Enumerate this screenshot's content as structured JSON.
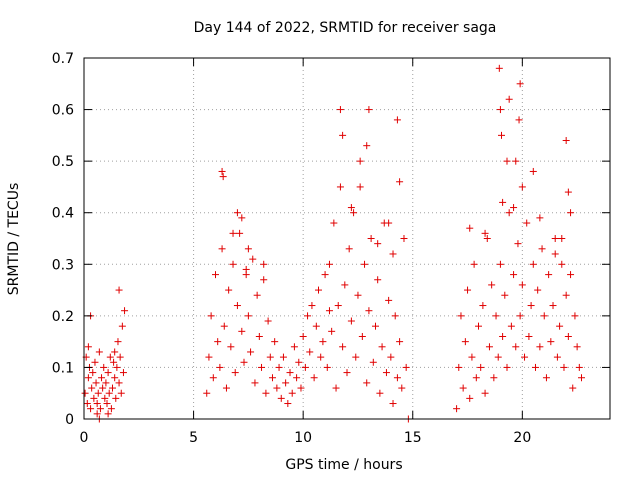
{
  "chart_data": {
    "type": "scatter",
    "title": "Day 144 of 2022, SRMTID for receiver saga",
    "xlabel": "GPS time / hours",
    "ylabel": "SRMTID / TECUs",
    "xlim": [
      0,
      24
    ],
    "ylim": [
      0,
      0.7
    ],
    "xticks": [
      0,
      5,
      10,
      15,
      20
    ],
    "yticks": [
      0,
      0.1,
      0.2,
      0.3,
      0.4,
      0.5,
      0.6,
      0.7
    ],
    "xtick_labels": [
      "0",
      "5",
      "10",
      "15",
      "20"
    ],
    "ytick_labels": [
      "0",
      "0.1",
      "0.2",
      "0.3",
      "0.4",
      "0.5",
      "0.6",
      "0.7"
    ],
    "grid": true,
    "marker": "+",
    "marker_color": "#e00000",
    "series": [
      {
        "name": "SRMTID",
        "x": [
          0.05,
          0.1,
          0.15,
          0.2,
          0.25,
          0.3,
          0.35,
          0.4,
          0.45,
          0.5,
          0.55,
          0.6,
          0.65,
          0.7,
          0.75,
          0.8,
          0.85,
          0.9,
          0.95,
          1.0,
          1.05,
          1.1,
          1.15,
          1.2,
          1.25,
          1.3,
          1.35,
          1.4,
          1.45,
          1.5,
          1.55,
          1.6,
          1.65,
          1.7,
          1.75,
          1.8,
          1.85,
          0.3,
          0.6,
          1.6,
          0.2,
          0.7,
          1.1,
          1.4,
          5.6,
          5.7,
          5.8,
          5.9,
          6.0,
          6.1,
          6.2,
          6.3,
          6.4,
          6.5,
          6.6,
          6.7,
          6.8,
          6.9,
          7.0,
          7.1,
          7.2,
          7.3,
          7.4,
          7.5,
          7.6,
          7.7,
          7.8,
          7.9,
          8.0,
          8.1,
          8.2,
          8.3,
          8.4,
          8.5,
          8.6,
          8.7,
          8.8,
          8.9,
          9.0,
          9.1,
          9.2,
          9.3,
          9.4,
          9.5,
          9.6,
          9.7,
          9.8,
          9.9,
          10.0,
          10.1,
          10.2,
          10.3,
          10.4,
          10.5,
          10.6,
          10.7,
          10.8,
          10.9,
          11.0,
          11.1,
          11.2,
          11.3,
          11.4,
          11.5,
          11.6,
          11.7,
          11.8,
          11.9,
          12.0,
          12.1,
          12.2,
          12.3,
          12.4,
          12.5,
          12.6,
          12.7,
          12.8,
          12.9,
          13.0,
          13.1,
          13.2,
          13.3,
          13.4,
          13.5,
          13.6,
          13.7,
          13.8,
          13.9,
          14.0,
          14.1,
          14.2,
          14.3,
          14.4,
          14.5,
          14.6,
          14.7,
          14.8,
          6.3,
          6.35,
          6.8,
          7.0,
          7.5,
          8.2,
          11.7,
          11.8,
          12.9,
          13.0,
          13.9,
          14.3,
          14.4,
          11.2,
          12.2,
          12.6,
          13.4,
          14.1,
          7.2,
          7.4,
          17.0,
          17.1,
          17.2,
          17.3,
          17.4,
          17.5,
          17.6,
          17.7,
          17.8,
          17.9,
          18.0,
          18.1,
          18.2,
          18.3,
          18.4,
          18.5,
          18.6,
          18.7,
          18.8,
          18.9,
          19.0,
          19.1,
          19.2,
          19.3,
          19.4,
          19.5,
          19.6,
          19.7,
          19.8,
          19.9,
          20.0,
          20.1,
          20.2,
          20.3,
          20.4,
          20.5,
          20.6,
          20.7,
          20.8,
          20.9,
          21.0,
          21.1,
          21.2,
          21.3,
          21.4,
          21.5,
          21.6,
          21.7,
          21.8,
          21.9,
          22.0,
          22.1,
          22.2,
          22.3,
          22.4,
          22.5,
          22.6,
          22.7,
          18.95,
          19.0,
          19.05,
          19.4,
          19.7,
          19.85,
          19.9,
          20.0,
          22.0,
          22.1,
          19.1,
          19.3,
          20.5,
          21.8,
          22.2,
          17.6,
          18.3,
          19.6,
          20.8,
          21.5
        ],
        "y": [
          0.05,
          0.12,
          0.03,
          0.08,
          0.1,
          0.02,
          0.06,
          0.09,
          0.04,
          0.11,
          0.07,
          0.03,
          0.05,
          0.13,
          0.02,
          0.08,
          0.06,
          0.1,
          0.04,
          0.07,
          0.03,
          0.09,
          0.05,
          0.12,
          0.02,
          0.06,
          0.11,
          0.08,
          0.04,
          0.1,
          0.15,
          0.07,
          0.12,
          0.05,
          0.18,
          0.09,
          0.21,
          0.2,
          0.01,
          0.25,
          0.14,
          0.0,
          0.01,
          0.13,
          0.05,
          0.12,
          0.2,
          0.08,
          0.28,
          0.15,
          0.1,
          0.33,
          0.18,
          0.06,
          0.25,
          0.14,
          0.3,
          0.09,
          0.22,
          0.36,
          0.17,
          0.11,
          0.28,
          0.2,
          0.13,
          0.31,
          0.07,
          0.24,
          0.16,
          0.1,
          0.27,
          0.05,
          0.19,
          0.12,
          0.08,
          0.15,
          0.06,
          0.1,
          0.04,
          0.12,
          0.07,
          0.03,
          0.09,
          0.05,
          0.14,
          0.08,
          0.11,
          0.06,
          0.16,
          0.1,
          0.2,
          0.13,
          0.22,
          0.08,
          0.18,
          0.25,
          0.12,
          0.15,
          0.28,
          0.1,
          0.3,
          0.17,
          0.38,
          0.06,
          0.22,
          0.45,
          0.14,
          0.26,
          0.09,
          0.33,
          0.19,
          0.4,
          0.12,
          0.24,
          0.5,
          0.16,
          0.3,
          0.07,
          0.21,
          0.35,
          0.11,
          0.18,
          0.27,
          0.05,
          0.14,
          0.38,
          0.09,
          0.23,
          0.12,
          0.03,
          0.2,
          0.08,
          0.15,
          0.06,
          0.35,
          0.1,
          0.0,
          0.48,
          0.47,
          0.36,
          0.4,
          0.33,
          0.3,
          0.6,
          0.55,
          0.53,
          0.6,
          0.38,
          0.58,
          0.46,
          0.21,
          0.41,
          0.45,
          0.34,
          0.32,
          0.39,
          0.29,
          0.02,
          0.1,
          0.2,
          0.06,
          0.15,
          0.25,
          0.04,
          0.12,
          0.3,
          0.08,
          0.18,
          0.1,
          0.22,
          0.05,
          0.35,
          0.14,
          0.26,
          0.08,
          0.2,
          0.12,
          0.3,
          0.16,
          0.24,
          0.1,
          0.4,
          0.18,
          0.28,
          0.14,
          0.34,
          0.2,
          0.26,
          0.12,
          0.38,
          0.16,
          0.22,
          0.3,
          0.1,
          0.25,
          0.14,
          0.33,
          0.2,
          0.08,
          0.28,
          0.15,
          0.22,
          0.35,
          0.12,
          0.18,
          0.3,
          0.1,
          0.24,
          0.16,
          0.28,
          0.06,
          0.2,
          0.14,
          0.1,
          0.08,
          0.68,
          0.6,
          0.55,
          0.62,
          0.5,
          0.58,
          0.65,
          0.45,
          0.54,
          0.44,
          0.42,
          0.5,
          0.48,
          0.35,
          0.4,
          0.37,
          0.36,
          0.41,
          0.39,
          0.32
        ]
      }
    ]
  }
}
